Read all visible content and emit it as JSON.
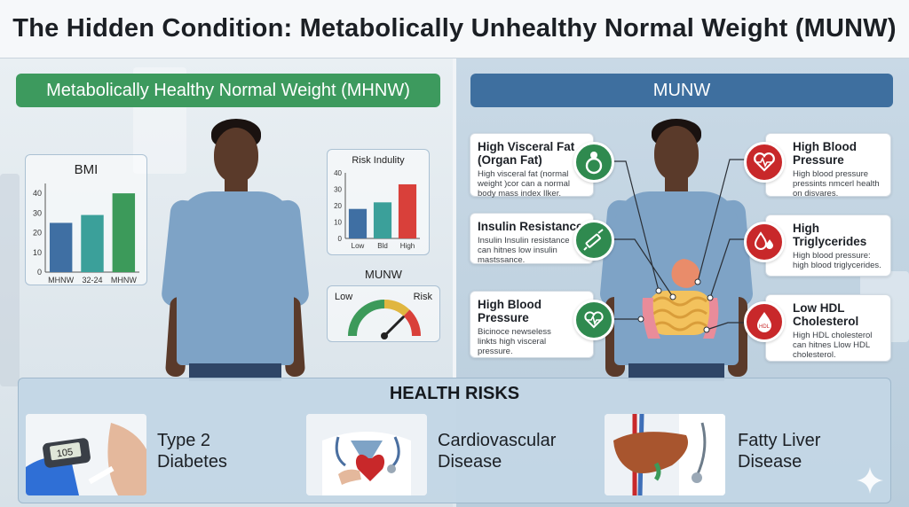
{
  "title": "The Hidden Condition: Metabolically Unhealthy Normal Weight (MUNW)",
  "left": {
    "label": "Metabolically Healthy Normal Weight (MHNW)",
    "bmi_chart": {
      "type": "bar",
      "title": "BMI",
      "categories": [
        "MHNW",
        "32-24",
        "MHNW"
      ],
      "values": [
        25,
        29,
        40
      ],
      "ylim": [
        0,
        45
      ],
      "yticks": [
        "0",
        "10",
        "20",
        "30",
        "40"
      ],
      "colors": [
        "#3f6fa3",
        "#3ba09a",
        "#3c9a5a"
      ]
    },
    "risk_chart": {
      "type": "bar",
      "title": "Risk Indulity",
      "categories": [
        "Low",
        "Bld",
        "High"
      ],
      "values": [
        18,
        22,
        33
      ],
      "ylim": [
        0,
        40
      ],
      "yticks": [
        "0",
        "10",
        "20",
        "30",
        "40"
      ],
      "colors": [
        "#3f6fa3",
        "#3ba09a",
        "#d9403a"
      ]
    },
    "gauge": {
      "title": "MUNW",
      "low_label": "Low",
      "high_label": "Risk",
      "level": 0.75
    }
  },
  "right": {
    "label": "MUNW",
    "callouts_left": [
      {
        "title": "High Visceral Fat (Organ Fat)",
        "desc": "High visceral fat (normal weight )cor can a normal body mass index Ilker.",
        "icon": "belly-icon"
      },
      {
        "title": "Insulin Resistance",
        "desc": "Insulin Insulin resistance can hitnes low insulin mastssance.",
        "icon": "syringe-icon"
      },
      {
        "title": "High Blood Pressure",
        "desc": "Bicinoce newseless linkts high visceral pressure.",
        "icon": "stethoscope-heart-icon"
      }
    ],
    "callouts_right": [
      {
        "title": "High Blood Pressure",
        "desc": "High blood pressure pressints nmcerl health on disvares.",
        "icon": "heart-pulse-icon"
      },
      {
        "title": "High Triglycerides",
        "desc": "High blood pressure: high blood triglycerides.",
        "icon": "blood-drops-icon"
      },
      {
        "title": "Low HDL Cholesterol",
        "desc": "High HDL cholesterol can hitnes Llow HDL cholesterol.",
        "icon": "blood-drop-hdl-icon",
        "icon_text": "HDL"
      }
    ]
  },
  "health_risks": {
    "title": "HEALTH RISKS",
    "items": [
      {
        "label": "Type 2 Diabetes",
        "icon": "glucose-meter-icon",
        "meter_text": "105"
      },
      {
        "label": "Cardiovascular Disease",
        "icon": "doctor-heart-icon"
      },
      {
        "label": "Fatty Liver Disease",
        "icon": "liver-icon"
      }
    ]
  }
}
